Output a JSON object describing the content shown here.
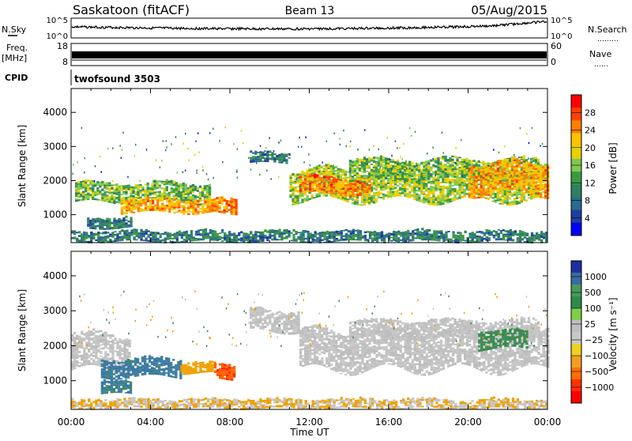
{
  "header": {
    "station": "Saskatoon (fitACF)",
    "beam": "Beam 13",
    "date": "05/Aug/2015"
  },
  "nsky_panel": {
    "left_label": "N.Sky",
    "right_label": "N.Search",
    "right_dots": "………",
    "tick_top": "10^5",
    "tick_bottom": "10^0"
  },
  "freq_panel": {
    "left_label_line1": "Freq.",
    "left_label_line2": "[MHz]",
    "tick_top": "18",
    "tick_bottom": "8",
    "right_label": "Nave",
    "right_dots": "……",
    "right_tick_top": "60",
    "right_tick_bottom": "0"
  },
  "cpid": {
    "label": "CPID",
    "value": "twofsound 3503"
  },
  "colorbars": [
    {
      "label": "Power [dB]",
      "ticks": [
        "28",
        "24",
        "20",
        "16",
        "12",
        "8",
        "4"
      ],
      "colors": [
        "#ff0000",
        "#ff4000",
        "#ff8000",
        "#ffc000",
        "#e6d200",
        "#7ec850",
        "#3a9a40",
        "#2f8060",
        "#2a6a90",
        "#1f3fa0",
        "#0000ff"
      ]
    },
    {
      "label": "Velocity [m s⁻¹]",
      "ticks": [
        "1000",
        "500",
        "100",
        "25",
        "−25",
        "−100",
        "−500",
        "−1000"
      ],
      "colors": [
        "#1f2fa0",
        "#3a6aa0",
        "#4a9a5a",
        "#2e8a4a",
        "#7bd04a",
        "#bfbfbf",
        "#c8c8c8",
        "#f0d020",
        "#f0a020",
        "#ff7000",
        "#ff3000",
        "#ff0000"
      ]
    }
  ],
  "chart_data": [
    {
      "type": "heatmap",
      "title": "",
      "xlabel": "Time UT",
      "ylabel": "Slant Range [km]",
      "x_ticks": [
        "00:00",
        "04:00",
        "08:00",
        "12:00",
        "16:00",
        "20:00",
        "00:00"
      ],
      "y_ticks": [
        1000,
        2000,
        3000,
        4000
      ],
      "xlim_hours": [
        0,
        24
      ],
      "ylim_km": [
        180,
        4700
      ],
      "colorbar": {
        "label": "Power [dB]",
        "ticks": [
          4,
          8,
          12,
          16,
          20,
          24,
          28
        ],
        "range": [
          0,
          30
        ]
      },
      "echo_bands": [
        {
          "t": [
            0.2,
            7.0
          ],
          "range_km": [
            1350,
            1900
          ],
          "value": 14
        },
        {
          "t": [
            2.5,
            7.2
          ],
          "range_km": [
            1050,
            1450
          ],
          "value": 22
        },
        {
          "t": [
            0.8,
            3.0
          ],
          "range_km": [
            600,
            900
          ],
          "value": 8
        },
        {
          "t": [
            7.3,
            8.3
          ],
          "range_km": [
            1050,
            1500
          ],
          "value": 24
        },
        {
          "t": [
            9.0,
            11.0
          ],
          "range_km": [
            2500,
            2800
          ],
          "value": 8
        },
        {
          "t": [
            11.0,
            24.0
          ],
          "range_km": [
            1400,
            2300
          ],
          "value": 16
        },
        {
          "t": [
            11.5,
            15.0
          ],
          "range_km": [
            1600,
            2100
          ],
          "value": 24
        },
        {
          "t": [
            14.0,
            23.5
          ],
          "range_km": [
            2000,
            2600
          ],
          "value": 14
        },
        {
          "t": [
            20.0,
            24.0
          ],
          "range_km": [
            1600,
            2500
          ],
          "value": 22
        },
        {
          "t": [
            0.0,
            24.0
          ],
          "range_km": [
            200,
            500
          ],
          "value": 8
        }
      ]
    },
    {
      "type": "heatmap",
      "title": "",
      "xlabel": "Time UT",
      "ylabel": "Slant Range [km]",
      "x_ticks": [
        "00:00",
        "04:00",
        "08:00",
        "12:00",
        "16:00",
        "20:00",
        "00:00"
      ],
      "y_ticks": [
        1000,
        2000,
        3000,
        4000
      ],
      "xlim_hours": [
        0,
        24
      ],
      "ylim_km": [
        180,
        4700
      ],
      "colorbar": {
        "label": "Velocity [m s⁻¹]",
        "ticks": [
          1000,
          500,
          100,
          25,
          -25,
          -100,
          -500,
          -1000
        ]
      },
      "echo_bands": [
        {
          "t": [
            0.0,
            3.0
          ],
          "range_km": [
            1300,
            2300
          ],
          "value": 0
        },
        {
          "t": [
            1.5,
            5.5
          ],
          "range_km": [
            1100,
            1600
          ],
          "value": 400
        },
        {
          "t": [
            5.5,
            7.2
          ],
          "range_km": [
            1200,
            1500
          ],
          "value": -100
        },
        {
          "t": [
            7.2,
            8.2
          ],
          "range_km": [
            1050,
            1450
          ],
          "value": -500
        },
        {
          "t": [
            1.5,
            3.0
          ],
          "range_km": [
            600,
            950
          ],
          "value": 300
        },
        {
          "t": [
            9.0,
            11.5
          ],
          "range_km": [
            2400,
            3000
          ],
          "value": 0
        },
        {
          "t": [
            11.5,
            24.0
          ],
          "range_km": [
            1300,
            2400
          ],
          "value": 0
        },
        {
          "t": [
            14.0,
            23.5
          ],
          "range_km": [
            2200,
            2700
          ],
          "value": 0
        },
        {
          "t": [
            20.5,
            23.0
          ],
          "range_km": [
            1900,
            2400
          ],
          "value": 150
        },
        {
          "t": [
            0.0,
            24.0
          ],
          "range_km": [
            200,
            450
          ],
          "value": -60
        }
      ]
    }
  ]
}
